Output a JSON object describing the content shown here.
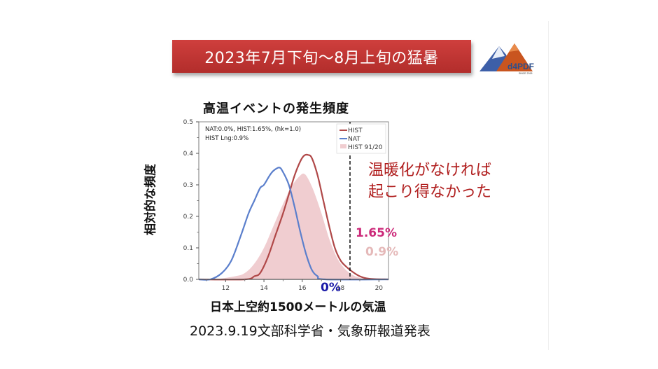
{
  "slide": {
    "title": "2023年7月下旬〜8月上旬の猛暑",
    "logo": {
      "name": "d4PDF",
      "subtext": "SINCE 2015"
    },
    "caption": "2023.9.19文部科学省・気象研報道発表",
    "annotations": {
      "main_line1": "温暖化がなければ",
      "main_line2": "起こり得なかった",
      "hist_pct": "1.65%",
      "hist_lng_pct": "0.9%",
      "nat_pct": "0%"
    },
    "colors": {
      "banner": "#c0342f",
      "annotation_main": "#b01e1e",
      "hist_pct": "#cc2a7a",
      "hist_lng_pct": "#e5b9b9",
      "nat_pct": "#1a1aa8"
    }
  },
  "chart_data": {
    "type": "line",
    "title": "高温イベントの発生頻度",
    "xlabel": "日本上空約1500メートルの気温",
    "ylabel": "相対的な頻度",
    "xlim": [
      10.6,
      20.5
    ],
    "ylim": [
      0.0,
      0.5
    ],
    "xticks": [
      "12",
      "14",
      "16",
      "18",
      "20"
    ],
    "yticks": [
      "0.0",
      "0.1",
      "0.2",
      "0.3",
      "0.4",
      "0.5"
    ],
    "grid": false,
    "legend_position": "upper right",
    "stats_text_line1": "NAT:0.0%, HIST:1.65%, (hk=1.0)",
    "stats_text_line2": "HIST Lng:0.9%",
    "threshold_x": 18.5,
    "series": [
      {
        "name": "HIST",
        "style": "line",
        "color": "#b04848",
        "x": [
          10.6,
          13.0,
          13.5,
          13.8,
          14.2,
          14.6,
          15.0,
          15.3,
          15.6,
          15.9,
          16.1,
          16.3,
          16.5,
          16.8,
          17.1,
          17.4,
          17.7,
          18.0,
          18.3,
          18.6,
          19.0,
          19.5,
          20.5
        ],
        "values": [
          0.0,
          0.0,
          0.01,
          0.02,
          0.07,
          0.14,
          0.21,
          0.27,
          0.33,
          0.375,
          0.393,
          0.395,
          0.385,
          0.33,
          0.25,
          0.17,
          0.1,
          0.06,
          0.04,
          0.025,
          0.01,
          0.002,
          0.0
        ]
      },
      {
        "name": "NAT",
        "style": "line",
        "color": "#5b7fcc",
        "x": [
          10.6,
          11.2,
          11.8,
          12.3,
          12.8,
          13.2,
          13.5,
          13.8,
          14.0,
          14.3,
          14.5,
          14.8,
          15.0,
          15.3,
          15.6,
          15.9,
          16.2,
          16.5,
          16.8,
          17.2,
          20.5
        ],
        "values": [
          0.0,
          0.0,
          0.02,
          0.06,
          0.14,
          0.21,
          0.25,
          0.29,
          0.3,
          0.33,
          0.345,
          0.355,
          0.34,
          0.3,
          0.23,
          0.15,
          0.08,
          0.03,
          0.01,
          0.0,
          0.0
        ]
      },
      {
        "name": "HIST 91/20",
        "style": "filled",
        "color": "#f0cdd0",
        "x": [
          11.5,
          12.5,
          13.0,
          13.5,
          14.0,
          14.5,
          15.0,
          15.5,
          15.9,
          16.1,
          16.3,
          16.6,
          17.0,
          17.4,
          17.8,
          18.2,
          18.6,
          19.0,
          19.5
        ],
        "values": [
          0.0,
          0.01,
          0.02,
          0.05,
          0.1,
          0.17,
          0.24,
          0.3,
          0.33,
          0.335,
          0.32,
          0.28,
          0.21,
          0.13,
          0.07,
          0.035,
          0.015,
          0.005,
          0.0
        ]
      }
    ]
  }
}
